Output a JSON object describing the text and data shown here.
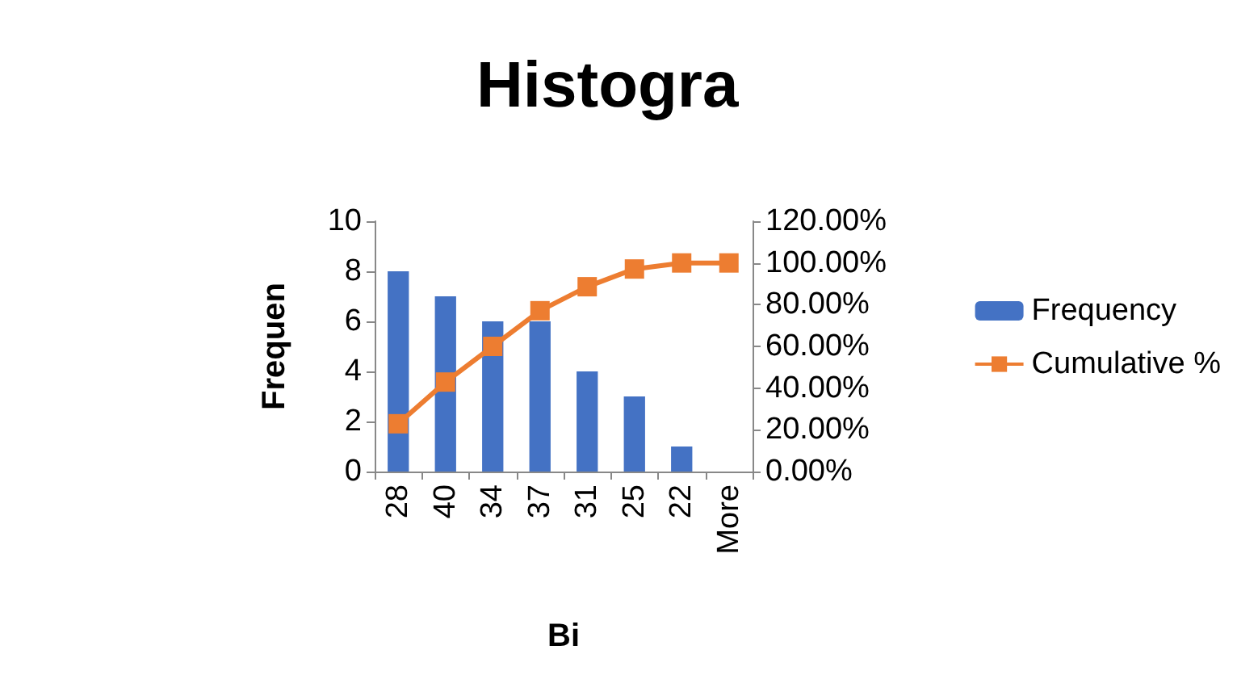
{
  "chart_data": {
    "type": "bar",
    "title": "Histogra",
    "xlabel": "Bi",
    "ylabel": "Frequen",
    "categories": [
      "28",
      "40",
      "34",
      "37",
      "31",
      "25",
      "22",
      "More"
    ],
    "series": [
      {
        "name": "Frequency",
        "color": "#4472c4",
        "values": [
          8,
          7,
          6,
          6,
          4,
          3,
          1,
          0
        ]
      },
      {
        "name": "Cumulative %",
        "type": "line",
        "axis": "y2",
        "color": "#ed7d31",
        "marker": "square",
        "values": [
          22.9,
          42.9,
          60,
          77.1,
          88.6,
          97.1,
          100,
          100
        ]
      }
    ],
    "ylim": [
      0,
      10
    ],
    "yticks": [
      0,
      2,
      4,
      6,
      8,
      10
    ],
    "y2lim": [
      0,
      120
    ],
    "y2ticks": [
      {
        "value": 0,
        "label": "0.00%"
      },
      {
        "value": 20,
        "label": "20.00%"
      },
      {
        "value": 40,
        "label": "40.00%"
      },
      {
        "value": 60,
        "label": "60.00%"
      },
      {
        "value": 80,
        "label": "80.00%"
      },
      {
        "value": 100,
        "label": "100.00%"
      },
      {
        "value": 120,
        "label": "120.00%"
      }
    ],
    "grid": false,
    "legend": "right"
  }
}
